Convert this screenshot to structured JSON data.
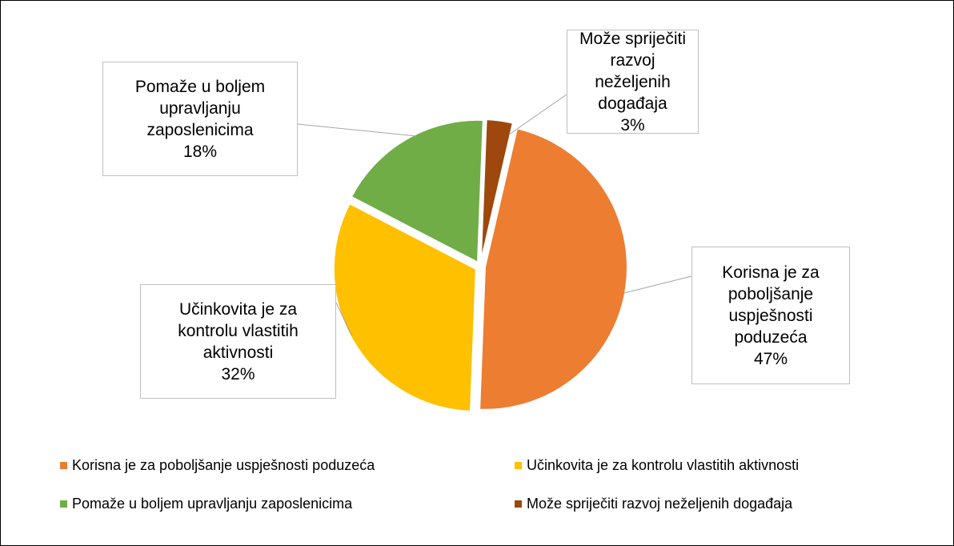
{
  "chart_data": {
    "type": "pie",
    "categories": [
      "Korisna je za poboljšanje uspješnosti poduzeća",
      "Učinkovita je za kontrolu vlastitih aktivnosti",
      "Pomaže u boljem upravljanju zaposlenicima",
      "Može spriječiti razvoj neželjenih događaja"
    ],
    "values": [
      47,
      32,
      18,
      3
    ],
    "value_labels": [
      "47%",
      "32%",
      "18%",
      "3%"
    ],
    "colors": [
      "#ED7D31",
      "#FFC000",
      "#70AD47",
      "#9E480E"
    ],
    "legend": "bottom"
  }
}
